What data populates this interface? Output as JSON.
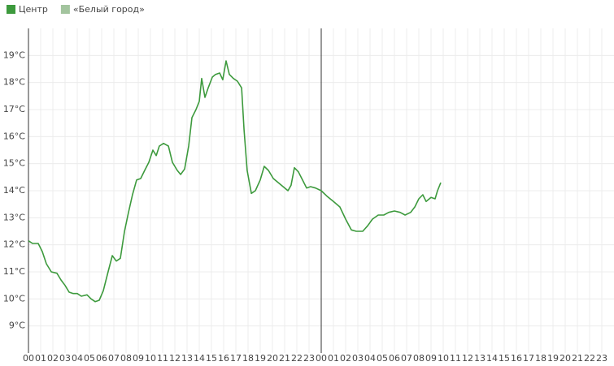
{
  "chart_data": {
    "type": "line",
    "series": [
      {
        "name": "Центр",
        "color": "#3d9a3d",
        "x": [
          0,
          0.33,
          0.8,
          1.13,
          1.47,
          1.87,
          2.33,
          2.67,
          3.0,
          3.33,
          3.67,
          4.0,
          4.33,
          4.8,
          5.13,
          5.47,
          5.8,
          6.13,
          6.53,
          6.87,
          7.2,
          7.53,
          7.87,
          8.2,
          8.53,
          8.87,
          9.2,
          9.53,
          9.87,
          10.2,
          10.47,
          10.73,
          11.07,
          11.47,
          11.8,
          12.2,
          12.47,
          12.8,
          13.13,
          13.4,
          13.73,
          14.0,
          14.2,
          14.47,
          14.73,
          15.07,
          15.33,
          15.67,
          15.93,
          16.2,
          16.47,
          16.8,
          17.13,
          17.47,
          17.67,
          17.93,
          18.27,
          18.6,
          19.0,
          19.33,
          19.67,
          20.07,
          20.47,
          20.87,
          21.27,
          21.53,
          21.8,
          22.13,
          22.47,
          22.8,
          23.13,
          23.53,
          24.0,
          24.47,
          25.0,
          25.53,
          26.0,
          26.47,
          26.87,
          27.4,
          27.8,
          28.2,
          28.67,
          29.13,
          29.53,
          30.0,
          30.47,
          30.87,
          31.33,
          31.67,
          32.0,
          32.33,
          32.6,
          33.0,
          33.33,
          33.53,
          33.8
        ],
        "values": [
          12.15,
          12.05,
          12.05,
          11.75,
          11.3,
          11.0,
          10.95,
          10.7,
          10.5,
          10.25,
          10.2,
          10.2,
          10.1,
          10.15,
          10.0,
          9.9,
          9.95,
          10.3,
          11.0,
          11.6,
          11.4,
          11.5,
          12.5,
          13.2,
          13.85,
          14.4,
          14.45,
          14.75,
          15.05,
          15.5,
          15.3,
          15.65,
          15.75,
          15.65,
          15.05,
          14.75,
          14.6,
          14.8,
          15.65,
          16.7,
          17.0,
          17.3,
          18.15,
          17.45,
          17.8,
          18.2,
          18.3,
          18.35,
          18.1,
          18.8,
          18.3,
          18.15,
          18.05,
          17.8,
          16.25,
          14.75,
          13.9,
          14.0,
          14.4,
          14.9,
          14.75,
          14.45,
          14.3,
          14.15,
          14.0,
          14.2,
          14.85,
          14.7,
          14.4,
          14.1,
          14.15,
          14.1,
          14.0,
          13.8,
          13.6,
          13.4,
          12.95,
          12.55,
          12.5,
          12.5,
          12.7,
          12.95,
          13.1,
          13.1,
          13.2,
          13.25,
          13.2,
          13.1,
          13.2,
          13.4,
          13.7,
          13.85,
          13.6,
          13.75,
          13.7,
          14.0,
          14.3
        ]
      },
      {
        "name": "«Белый город»",
        "color": "#a3c49e",
        "x": [],
        "values": []
      }
    ],
    "xlim": [
      0,
      48
    ],
    "xticks": [
      {
        "value": 0,
        "label": "00"
      },
      {
        "value": 1,
        "label": "01"
      },
      {
        "value": 2,
        "label": "02"
      },
      {
        "value": 3,
        "label": "03"
      },
      {
        "value": 4,
        "label": "04"
      },
      {
        "value": 5,
        "label": "05"
      },
      {
        "value": 6,
        "label": "06"
      },
      {
        "value": 7,
        "label": "07"
      },
      {
        "value": 8,
        "label": "08"
      },
      {
        "value": 9,
        "label": "09"
      },
      {
        "value": 10,
        "label": "10"
      },
      {
        "value": 11,
        "label": "11"
      },
      {
        "value": 12,
        "label": "12"
      },
      {
        "value": 13,
        "label": "13"
      },
      {
        "value": 14,
        "label": "14"
      },
      {
        "value": 15,
        "label": "15"
      },
      {
        "value": 16,
        "label": "16"
      },
      {
        "value": 17,
        "label": "17"
      },
      {
        "value": 18,
        "label": "18"
      },
      {
        "value": 19,
        "label": "19"
      },
      {
        "value": 20,
        "label": "20"
      },
      {
        "value": 21,
        "label": "21"
      },
      {
        "value": 22,
        "label": "22"
      },
      {
        "value": 23,
        "label": "23"
      },
      {
        "value": 24,
        "label": "00"
      },
      {
        "value": 25,
        "label": "01"
      },
      {
        "value": 26,
        "label": "02"
      },
      {
        "value": 27,
        "label": "03"
      },
      {
        "value": 28,
        "label": "04"
      },
      {
        "value": 29,
        "label": "05"
      },
      {
        "value": 30,
        "label": "06"
      },
      {
        "value": 31,
        "label": "07"
      },
      {
        "value": 32,
        "label": "08"
      },
      {
        "value": 33,
        "label": "09"
      },
      {
        "value": 34,
        "label": "10"
      },
      {
        "value": 35,
        "label": "11"
      },
      {
        "value": 36,
        "label": "12"
      },
      {
        "value": 37,
        "label": "13"
      },
      {
        "value": 38,
        "label": "14"
      },
      {
        "value": 39,
        "label": "15"
      },
      {
        "value": 40,
        "label": "16"
      },
      {
        "value": 41,
        "label": "17"
      },
      {
        "value": 42,
        "label": "18"
      },
      {
        "value": 43,
        "label": "19"
      },
      {
        "value": 44,
        "label": "20"
      },
      {
        "value": 45,
        "label": "21"
      },
      {
        "value": 46,
        "label": "22"
      },
      {
        "value": 47,
        "label": "23"
      }
    ],
    "ylim": [
      8,
      20
    ],
    "yticks": [
      {
        "value": 9,
        "label": "9°C"
      },
      {
        "value": 10,
        "label": "10°C"
      },
      {
        "value": 11,
        "label": "11°C"
      },
      {
        "value": 12,
        "label": "12°C"
      },
      {
        "value": 13,
        "label": "13°C"
      },
      {
        "value": 14,
        "label": "14°C"
      },
      {
        "value": 15,
        "label": "15°C"
      },
      {
        "value": 16,
        "label": "16°C"
      },
      {
        "value": 17,
        "label": "17°C"
      },
      {
        "value": 18,
        "label": "18°C"
      },
      {
        "value": 19,
        "label": "19°C"
      }
    ],
    "vlines": [
      24
    ],
    "grid": true
  }
}
